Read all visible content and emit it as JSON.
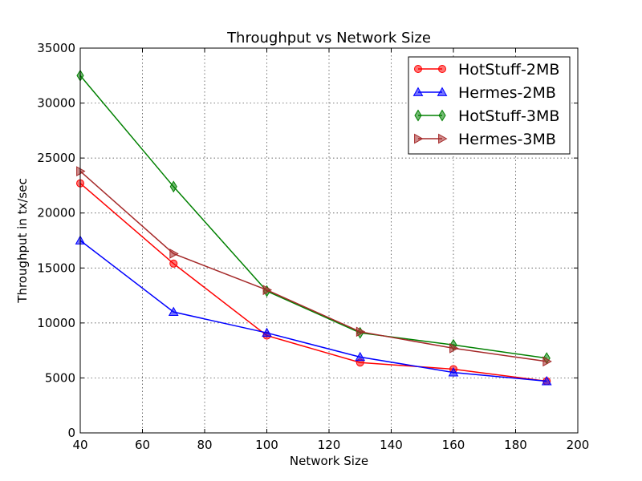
{
  "chart_data": {
    "type": "line",
    "title": "Throughput vs Network Size",
    "xlabel": "Network Size",
    "ylabel": "Throughput in tx/sec",
    "xlim": [
      40,
      200
    ],
    "ylim": [
      0,
      35000
    ],
    "xticks": [
      40,
      60,
      80,
      100,
      120,
      140,
      160,
      180,
      200
    ],
    "yticks": [
      0,
      5000,
      10000,
      15000,
      20000,
      25000,
      30000,
      35000
    ],
    "grid": true,
    "legend_position": "top-right",
    "x": [
      40,
      70,
      100,
      130,
      160,
      190
    ],
    "series": [
      {
        "name": "HotStuff-2MB",
        "color": "#ff0000",
        "marker": "circle",
        "values": [
          22700,
          15400,
          8850,
          6400,
          5800,
          4700
        ]
      },
      {
        "name": "Hermes-2MB",
        "color": "#0000ff",
        "marker": "triangle-up",
        "values": [
          17500,
          11000,
          9100,
          6900,
          5500,
          4700
        ]
      },
      {
        "name": "HotStuff-3MB",
        "color": "#008000",
        "marker": "diamond",
        "values": [
          32500,
          22400,
          12900,
          9100,
          8000,
          6800
        ]
      },
      {
        "name": "Hermes-3MB",
        "color": "#a52a2a",
        "marker": "triangle-right",
        "values": [
          23800,
          16300,
          13000,
          9200,
          7700,
          6500
        ]
      }
    ]
  }
}
